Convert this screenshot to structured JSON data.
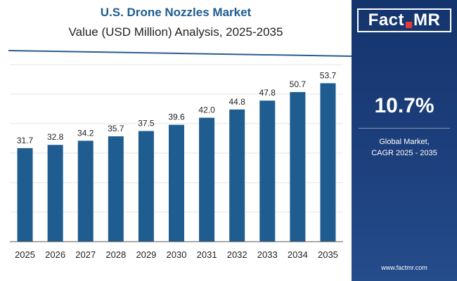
{
  "chart_data": {
    "type": "bar",
    "title": "U.S. Drone Nozzles Market",
    "subtitle": "Value (USD Million) Analysis, 2025-2035",
    "categories": [
      "2025",
      "2026",
      "2027",
      "2028",
      "2029",
      "2030",
      "2031",
      "2032",
      "2033",
      "2034",
      "2035"
    ],
    "values": [
      31.7,
      32.8,
      34.2,
      35.7,
      37.5,
      39.6,
      42.0,
      44.8,
      47.8,
      50.7,
      53.7
    ],
    "labels": [
      "31.7",
      "32.8",
      "34.2",
      "35.7",
      "37.5",
      "39.6",
      "42.0",
      "44.8",
      "47.8",
      "50.7",
      "53.7"
    ],
    "ylim": [
      0,
      60
    ],
    "xlabel": "",
    "ylabel": "",
    "grid": true,
    "bar_color": "#1f5c8f"
  },
  "sidebar": {
    "logo_left": "Fact",
    "logo_right": "MR",
    "cagr_value": "10.7%",
    "cagr_label_line1": "Global Market,",
    "cagr_label_line2": "CAGR 2025 - 2035",
    "website": "www.factmr.com"
  },
  "colors": {
    "title": "#1f5c8f",
    "sidebar_top": "#14346d",
    "accent_red": "#e53935"
  }
}
